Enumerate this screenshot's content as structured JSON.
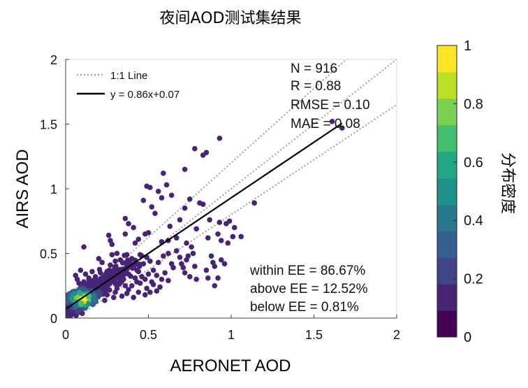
{
  "chart_data": {
    "type": "scatter",
    "title": "夜间AOD测试集结果",
    "xlabel": "AERONET AOD",
    "ylabel": "AIRS AOD",
    "xlim": [
      0,
      2
    ],
    "ylim": [
      0,
      2
    ],
    "xticks": [
      0,
      0.5,
      1,
      1.5,
      2
    ],
    "yticks": [
      0,
      0.5,
      1,
      1.5,
      2
    ],
    "xtick_labels": [
      "0",
      "0.5",
      "1",
      "1.5",
      "2"
    ],
    "ytick_labels": [
      "0",
      "0.5",
      "1",
      "1.5",
      "2"
    ],
    "grid": false,
    "legend": {
      "placement": "top-left",
      "entries": [
        {
          "label": "1:1 Line",
          "style": "dotted",
          "color": "#a6a6a6"
        },
        {
          "label": "y = 0.86x+0.07",
          "style": "solid",
          "color": "#000000"
        }
      ]
    },
    "stats_top": [
      "N = 916",
      "R = 0.88",
      "RMSE = 0.10",
      "MAE = 0.08"
    ],
    "stats_bottom": [
      "within EE = 86.67%",
      "above EE = 12.52%",
      "below EE = 0.81%"
    ],
    "fit_line": {
      "slope": 0.86,
      "intercept": 0.07,
      "x_range": [
        0,
        1.67
      ]
    },
    "ee_lines": [
      {
        "slope": 1.15,
        "intercept": 0.05
      },
      {
        "slope": 0.85,
        "intercept": -0.05
      }
    ],
    "colorbar": {
      "label": "分布密度",
      "range": [
        0,
        1
      ],
      "ticks": [
        0,
        0.2,
        0.4,
        0.6,
        0.8,
        1
      ],
      "tick_labels": [
        "0",
        "0.2",
        "0.4",
        "0.6",
        "0.8",
        "1"
      ],
      "colors": [
        "#440154",
        "#482475",
        "#414487",
        "#355f8d",
        "#2a788e",
        "#21918c",
        "#22a884",
        "#44bf70",
        "#7ad151",
        "#bddf26",
        "#fde725"
      ]
    },
    "points": [
      [
        0.93,
        1.39
      ],
      [
        0.78,
        1.31
      ],
      [
        0.85,
        1.28
      ],
      [
        0.83,
        1.26
      ],
      [
        0.72,
        1.15
      ],
      [
        0.59,
        1.12
      ],
      [
        0.49,
        1.02
      ],
      [
        0.51,
        1.01
      ],
      [
        0.61,
        1.03
      ],
      [
        0.56,
        0.98
      ],
      [
        0.47,
        0.91
      ],
      [
        0.64,
        0.95
      ],
      [
        0.75,
        0.92
      ],
      [
        0.81,
        0.89
      ],
      [
        0.83,
        0.88
      ],
      [
        0.58,
        0.93
      ],
      [
        0.72,
        0.85
      ],
      [
        0.36,
        0.77
      ],
      [
        0.38,
        0.73
      ],
      [
        0.52,
        0.86
      ],
      [
        0.54,
        0.81
      ],
      [
        0.69,
        0.76
      ],
      [
        0.87,
        0.76
      ],
      [
        0.93,
        0.74
      ],
      [
        0.92,
        0.65
      ],
      [
        1.14,
        0.89
      ],
      [
        0.79,
        0.69
      ],
      [
        0.97,
        0.73
      ],
      [
        0.99,
        0.75
      ],
      [
        1.01,
        0.63
      ],
      [
        0.98,
        0.58
      ],
      [
        0.94,
        0.6
      ],
      [
        0.86,
        0.62
      ],
      [
        0.63,
        0.71
      ],
      [
        0.67,
        0.62
      ],
      [
        0.48,
        0.65
      ],
      [
        0.41,
        0.7
      ],
      [
        0.42,
        0.58
      ],
      [
        0.44,
        0.61
      ],
      [
        0.5,
        0.66
      ],
      [
        0.28,
        0.57
      ],
      [
        0.27,
        0.6
      ],
      [
        0.36,
        0.65
      ],
      [
        0.26,
        0.64
      ],
      [
        0.62,
        0.6
      ],
      [
        0.58,
        0.59
      ],
      [
        0.73,
        0.58
      ],
      [
        0.76,
        0.55
      ],
      [
        0.74,
        0.48
      ],
      [
        0.77,
        0.5
      ],
      [
        0.7,
        0.42
      ],
      [
        0.72,
        0.35
      ],
      [
        0.75,
        0.32
      ],
      [
        0.73,
        0.45
      ],
      [
        0.71,
        0.39
      ],
      [
        0.78,
        0.4
      ],
      [
        0.9,
        0.4
      ],
      [
        0.88,
        0.48
      ],
      [
        0.89,
        0.43
      ],
      [
        0.94,
        0.45
      ],
      [
        0.96,
        0.42
      ],
      [
        0.85,
        0.37
      ],
      [
        0.86,
        0.31
      ],
      [
        0.9,
        0.25
      ],
      [
        0.92,
        0.31
      ],
      [
        0.79,
        0.3
      ],
      [
        0.59,
        0.48
      ],
      [
        0.62,
        0.5
      ],
      [
        0.56,
        0.43
      ],
      [
        0.64,
        0.42
      ],
      [
        0.65,
        0.39
      ],
      [
        0.49,
        0.47
      ],
      [
        0.51,
        0.44
      ],
      [
        0.45,
        0.49
      ],
      [
        0.47,
        0.42
      ],
      [
        0.4,
        0.46
      ],
      [
        0.37,
        0.49
      ],
      [
        0.33,
        0.45
      ],
      [
        0.31,
        0.5
      ],
      [
        0.3,
        0.44
      ],
      [
        0.28,
        0.49
      ],
      [
        0.27,
        0.41
      ],
      [
        0.11,
        0.55
      ],
      [
        0.22,
        0.43
      ],
      [
        0.2,
        0.46
      ],
      [
        0.25,
        0.36
      ],
      [
        0.29,
        0.35
      ],
      [
        0.35,
        0.38
      ],
      [
        0.38,
        0.34
      ],
      [
        0.44,
        0.36
      ],
      [
        0.5,
        0.34
      ],
      [
        0.55,
        0.33
      ],
      [
        0.6,
        0.35
      ],
      [
        0.48,
        0.3
      ],
      [
        0.42,
        0.31
      ],
      [
        0.35,
        0.3
      ],
      [
        0.32,
        0.27
      ],
      [
        0.45,
        0.27
      ],
      [
        0.52,
        0.28
      ],
      [
        0.58,
        0.3
      ],
      [
        0.62,
        0.29
      ],
      [
        0.57,
        0.24
      ],
      [
        0.49,
        0.23
      ],
      [
        0.4,
        0.25
      ],
      [
        0.38,
        0.22
      ],
      [
        0.31,
        0.23
      ],
      [
        0.26,
        0.26
      ],
      [
        0.22,
        0.29
      ],
      [
        0.18,
        0.32
      ],
      [
        0.16,
        0.36
      ],
      [
        0.21,
        0.35
      ],
      [
        0.14,
        0.31
      ],
      [
        0.12,
        0.34
      ],
      [
        0.09,
        0.37
      ],
      [
        0.06,
        0.33
      ],
      [
        0.07,
        0.3
      ],
      [
        1.06,
        0.63
      ],
      [
        1.02,
        0.7
      ],
      [
        0.67,
        0.52
      ],
      [
        0.69,
        0.47
      ],
      [
        1.61,
        1.52
      ],
      [
        1.67,
        1.47
      ],
      [
        0.53,
        0.37
      ],
      [
        0.41,
        0.39
      ],
      [
        0.33,
        0.33
      ],
      [
        0.27,
        0.31
      ],
      [
        0.24,
        0.33
      ],
      [
        0.19,
        0.27
      ],
      [
        0.36,
        0.25
      ],
      [
        0.43,
        0.28
      ],
      [
        0.46,
        0.32
      ],
      [
        0.53,
        0.26
      ],
      [
        0.55,
        0.21
      ],
      [
        0.44,
        0.2
      ],
      [
        0.37,
        0.19
      ],
      [
        0.3,
        0.2
      ],
      [
        0.24,
        0.22
      ],
      [
        0.34,
        0.17
      ],
      [
        0.41,
        0.16
      ],
      [
        0.48,
        0.18
      ],
      [
        0.51,
        0.2
      ],
      [
        0.29,
        0.16
      ],
      [
        0.25,
        0.18
      ],
      [
        0.21,
        0.2
      ],
      [
        0.19,
        0.23
      ],
      [
        0.17,
        0.25
      ],
      [
        0.15,
        0.22
      ],
      [
        0.13,
        0.26
      ],
      [
        0.11,
        0.28
      ],
      [
        0.08,
        0.27
      ]
    ]
  }
}
